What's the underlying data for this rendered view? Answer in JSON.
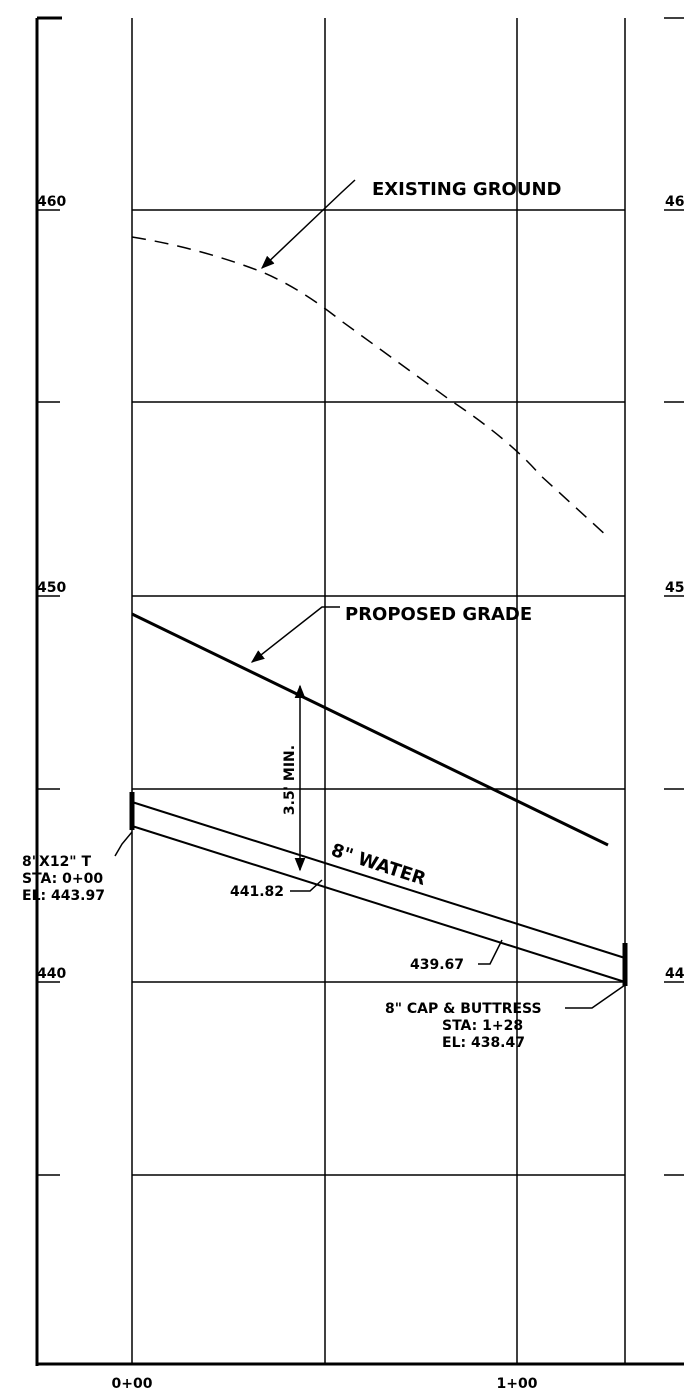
{
  "elevation_labels": [
    "460",
    "450",
    "440"
  ],
  "right_labels": [
    "46",
    "45",
    "44"
  ],
  "station_labels": [
    "0+00",
    "1+00"
  ],
  "existing_ground": "EXISTING GROUND",
  "proposed_grade": "PROPOSED GRADE",
  "cover": "3.5' MIN.",
  "pipe": "8\" WATER",
  "start_fitting": {
    "name": "8\"X12\" T",
    "station": "STA: 0+00",
    "elevation": "EL: 443.97"
  },
  "invert_labels": [
    "441.82",
    "439.67"
  ],
  "end_fitting": {
    "name": "8\" CAP & BUTTRESS",
    "station": "STA: 1+28",
    "elevation": "EL: 438.47"
  }
}
